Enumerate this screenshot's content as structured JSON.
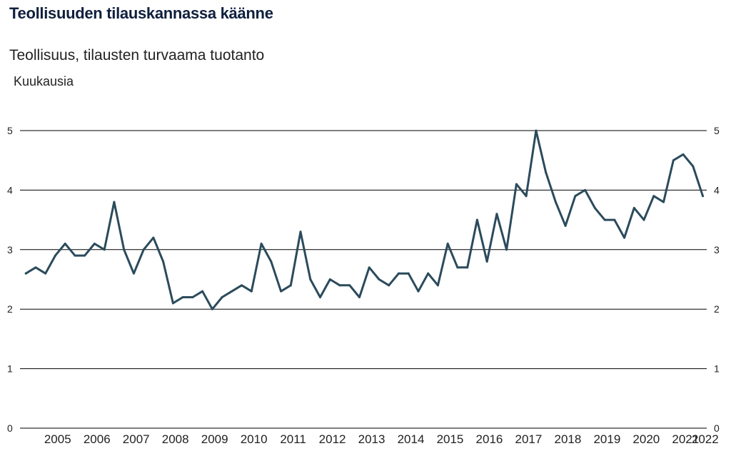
{
  "header": {
    "title": "Teollisuuden tilauskannassa käänne",
    "subtitle": "Teollisuus, tilausten turvaama tuotanto",
    "unit": "Kuukausia"
  },
  "colors": {
    "line": "#2b4b5c",
    "grid": "#000000"
  },
  "chart_data": {
    "type": "line",
    "title": "Teollisuuden tilauskannassa käänne",
    "subtitle": "Teollisuus, tilausten turvaama tuotanto",
    "ylabel": "Kuukausia",
    "xlabel": "",
    "xlim": [
      2004.52,
      2022.02
    ],
    "ylim": [
      0,
      5
    ],
    "yticks": [
      0,
      1,
      2,
      3,
      4,
      5
    ],
    "xtick_labels": [
      "2005",
      "2006",
      "2007",
      "2008",
      "2009",
      "2010",
      "2011",
      "2012",
      "2013",
      "2014",
      "2015",
      "2016",
      "2017",
      "2018",
      "2019",
      "2020",
      "2021",
      "2022"
    ],
    "grid": "horizontal",
    "y_axis_both_sides": true,
    "series": [
      {
        "x": [
          2004.67,
          2004.92,
          2005.17,
          2005.42,
          2005.67,
          2005.92,
          2006.17,
          2006.42,
          2006.67,
          2006.92,
          2007.17,
          2007.42,
          2007.67,
          2007.92,
          2008.17,
          2008.42,
          2008.67,
          2008.92,
          2009.17,
          2009.42,
          2009.67,
          2009.92,
          2010.17,
          2010.42,
          2010.67,
          2010.92,
          2011.17,
          2011.42,
          2011.67,
          2011.92,
          2012.17,
          2012.42,
          2012.67,
          2012.92,
          2013.17,
          2013.42,
          2013.67,
          2013.92,
          2014.17,
          2014.42,
          2014.67,
          2014.92,
          2015.17,
          2015.42,
          2015.67,
          2015.92,
          2016.17,
          2016.42,
          2016.67,
          2016.92,
          2017.17,
          2017.42,
          2017.67,
          2017.92,
          2018.17,
          2018.42,
          2018.67,
          2018.92,
          2019.17,
          2019.42,
          2019.67,
          2019.92,
          2020.17,
          2020.42,
          2020.67,
          2020.92,
          2021.17,
          2021.42,
          2021.67,
          2021.92
        ],
        "values": [
          2.6,
          2.7,
          2.6,
          2.9,
          3.1,
          2.9,
          2.9,
          3.1,
          3.0,
          3.8,
          3.0,
          2.6,
          3.0,
          3.2,
          2.8,
          2.1,
          2.2,
          2.2,
          2.3,
          2.0,
          2.2,
          2.3,
          2.4,
          2.3,
          3.1,
          2.8,
          2.3,
          2.4,
          3.3,
          2.5,
          2.2,
          2.5,
          2.4,
          2.4,
          2.2,
          2.7,
          2.5,
          2.4,
          2.6,
          2.6,
          2.3,
          2.6,
          2.4,
          3.1,
          2.7,
          2.7,
          3.5,
          2.8,
          3.6,
          3.0,
          4.1,
          3.9,
          5.0,
          4.3,
          3.8,
          3.4,
          3.9,
          4.0,
          3.7,
          3.5,
          3.5,
          3.2,
          3.7,
          3.5,
          3.9,
          3.8,
          4.5,
          4.6,
          4.4,
          3.9
        ]
      }
    ]
  }
}
